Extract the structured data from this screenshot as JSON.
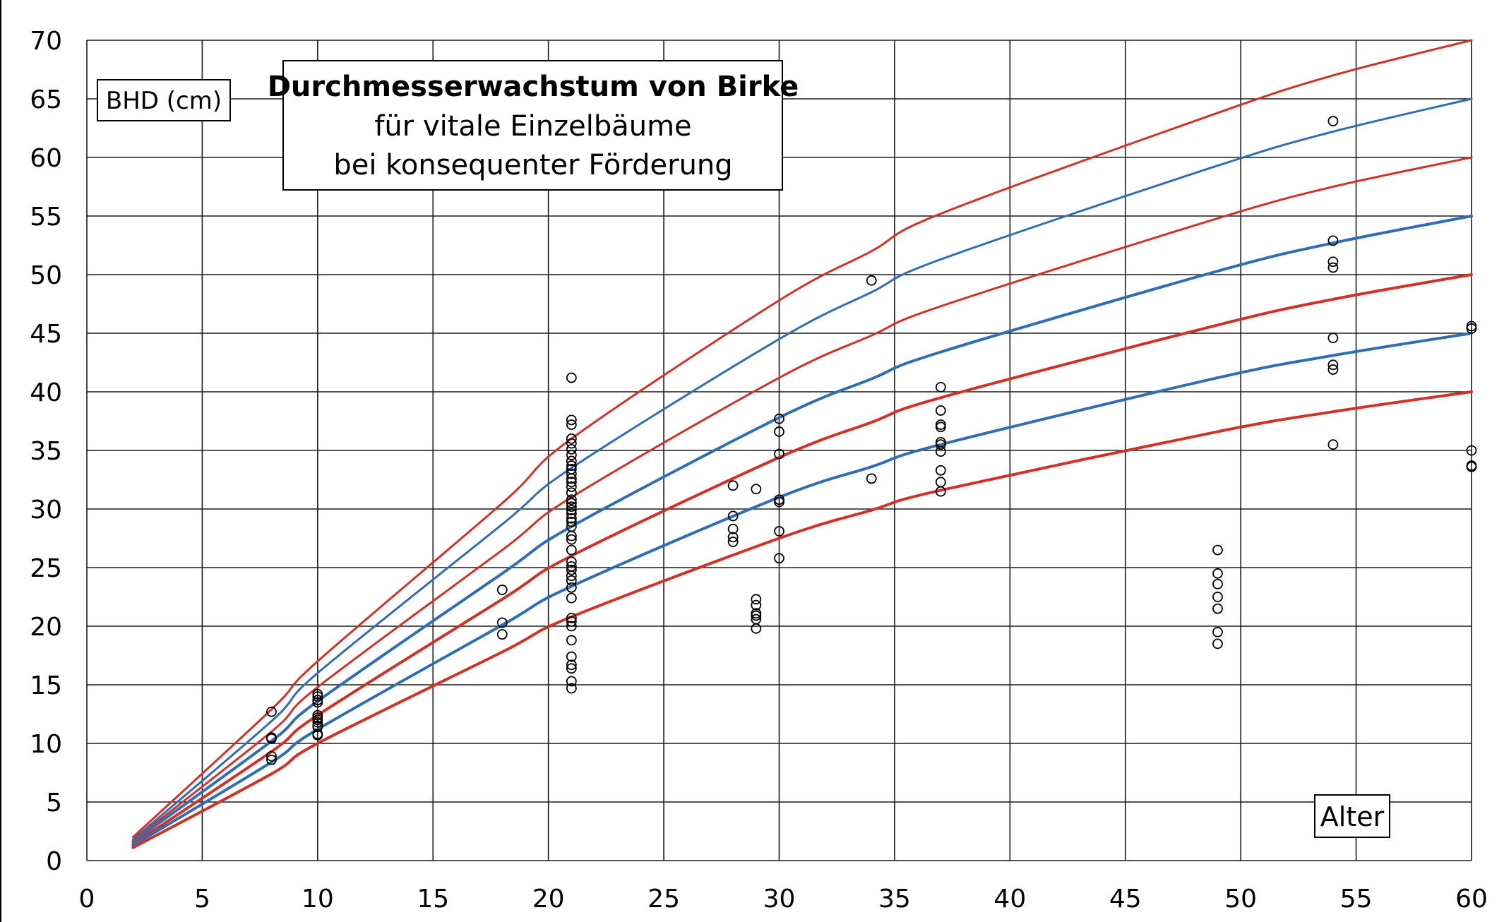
{
  "chart_data": {
    "type": "line",
    "title": "Durchmesserwachstum von Birke",
    "subtitle": [
      "für vitale Einzelbäume",
      "bei konsequenter Förderung"
    ],
    "ylabel": "BHD (cm)",
    "xlabel": "Alter",
    "xlim": [
      0,
      60
    ],
    "ylim": [
      0,
      70
    ],
    "x_ticks": [
      0,
      5,
      10,
      15,
      20,
      25,
      30,
      35,
      40,
      45,
      50,
      55,
      60
    ],
    "y_ticks": [
      0,
      5,
      10,
      15,
      20,
      25,
      30,
      35,
      40,
      45,
      50,
      55,
      60,
      65,
      70
    ],
    "grid": true,
    "curve_x": [
      2,
      8,
      10,
      18,
      21,
      30,
      34,
      37,
      49,
      54,
      60
    ],
    "series": [
      {
        "color": "#d03228",
        "stroke": 3,
        "values": [
          2.0,
          12.9,
          17.0,
          30.5,
          36.0,
          47.8,
          52.0,
          55.2,
          63.8,
          67.0,
          70.0
        ]
      },
      {
        "color": "#2f6db5",
        "stroke": 3,
        "values": [
          1.8,
          11.9,
          16.0,
          28.7,
          33.5,
          44.5,
          48.5,
          51.3,
          59.3,
          62.2,
          65.0
        ]
      },
      {
        "color": "#d03228",
        "stroke": 3,
        "values": [
          1.7,
          11.0,
          14.8,
          26.5,
          31.0,
          41.2,
          44.8,
          47.3,
          54.8,
          57.5,
          60.0
        ]
      },
      {
        "color": "#2f6db5",
        "stroke": 4,
        "values": [
          1.6,
          10.2,
          13.6,
          24.5,
          28.5,
          37.8,
          41.1,
          43.4,
          50.3,
          52.7,
          55.0
        ]
      },
      {
        "color": "#d03228",
        "stroke": 4,
        "values": [
          1.4,
          9.3,
          12.4,
          22.3,
          26.0,
          34.4,
          37.4,
          39.5,
          45.7,
          47.9,
          50.0
        ]
      },
      {
        "color": "#2f6db5",
        "stroke": 4,
        "values": [
          1.3,
          8.4,
          11.2,
          20.1,
          23.4,
          31.0,
          33.6,
          35.5,
          41.2,
          43.1,
          45.0
        ]
      },
      {
        "color": "#d03228",
        "stroke": 4,
        "values": [
          1.1,
          7.4,
          10.0,
          17.8,
          20.8,
          27.5,
          29.9,
          31.6,
          36.6,
          38.3,
          40.0
        ]
      }
    ],
    "scatter": [
      {
        "x": 8,
        "y": [
          12.7,
          10.5,
          10.4,
          8.9,
          8.6
        ]
      },
      {
        "x": 10,
        "y": [
          14.2,
          14.0,
          13.7,
          13.5,
          12.4,
          12.2,
          12.0,
          11.8,
          11.5,
          11.4,
          10.8,
          10.7
        ]
      },
      {
        "x": 18,
        "y": [
          23.1,
          20.3,
          19.3
        ]
      },
      {
        "x": 21,
        "y": [
          41.2,
          37.6,
          37.2,
          36.0,
          35.6,
          35.1,
          34.6,
          34.1,
          33.7,
          33.4,
          33.0,
          32.6,
          32.3,
          31.9,
          31.4,
          30.8,
          30.5,
          30.2,
          29.9,
          29.6,
          29.2,
          28.9,
          28.5,
          27.7,
          27.4,
          26.5,
          25.5,
          25.1,
          24.8,
          24.3,
          23.9,
          23.3,
          22.4,
          20.7,
          20.4,
          20.0,
          18.8,
          17.4,
          16.7,
          16.4,
          15.3,
          14.7
        ]
      },
      {
        "x": 28,
        "y": [
          32.0,
          29.4,
          28.3,
          27.6,
          27.2
        ]
      },
      {
        "x": 29,
        "y": [
          31.7,
          22.3,
          21.8,
          21.1,
          20.9,
          20.6,
          19.8
        ]
      },
      {
        "x": 30,
        "y": [
          37.7,
          36.6,
          34.7,
          30.8,
          30.6,
          28.1,
          25.8
        ]
      },
      {
        "x": 34,
        "y": [
          49.5,
          32.6
        ]
      },
      {
        "x": 37,
        "y": [
          40.4,
          38.4,
          37.2,
          37.0,
          35.7,
          35.5,
          34.9,
          33.3,
          32.3,
          31.5
        ]
      },
      {
        "x": 49,
        "y": [
          26.5,
          24.5,
          23.6,
          22.5,
          21.5,
          19.5,
          18.5
        ]
      },
      {
        "x": 54,
        "y": [
          63.1,
          52.9,
          51.1,
          50.6,
          44.6,
          42.3,
          41.9,
          35.5
        ]
      },
      {
        "x": 60,
        "y": [
          45.6,
          45.4,
          35.0,
          33.7,
          33.6
        ]
      }
    ]
  }
}
